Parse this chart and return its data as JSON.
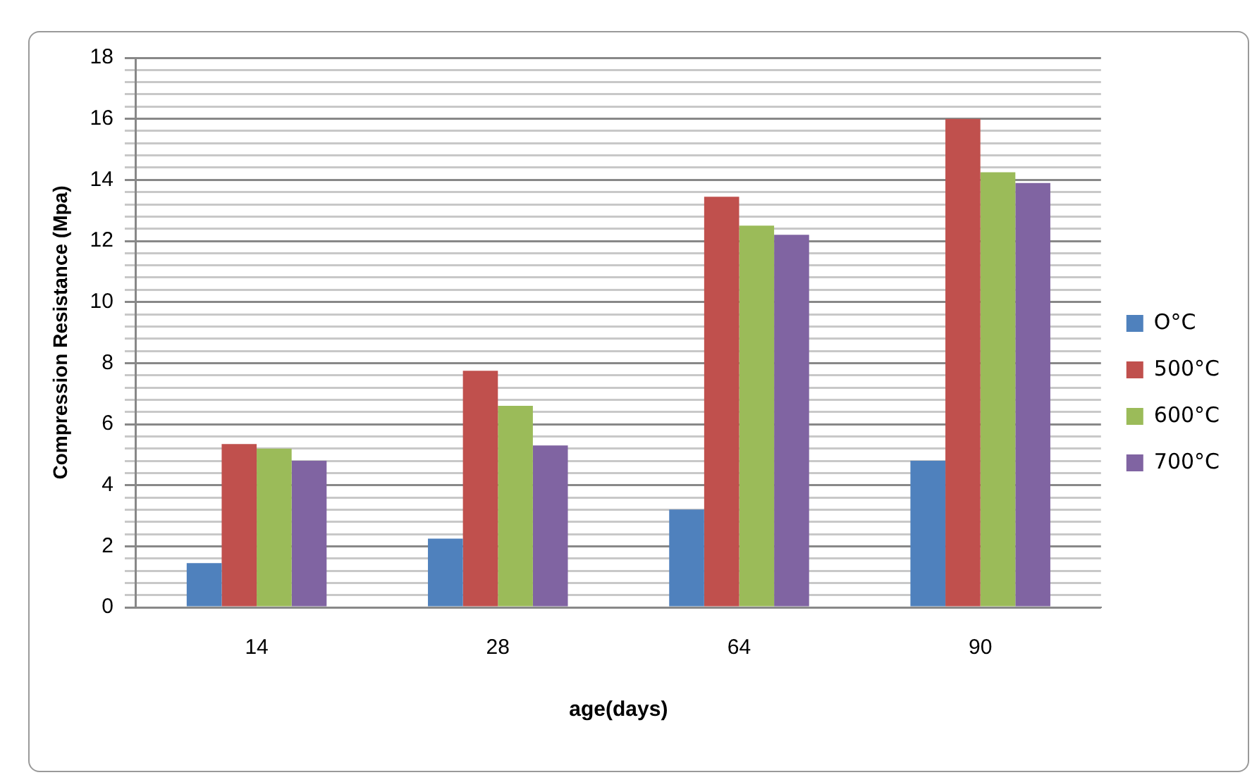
{
  "chart_data": {
    "type": "bar",
    "xlabel": "age(days)",
    "ylabel": "Compression Resistance (Mpa)",
    "categories": [
      "14",
      "28",
      "64",
      "90"
    ],
    "series": [
      {
        "name": "O°C",
        "color": "#4f81bd",
        "values": [
          1.45,
          2.25,
          3.2,
          4.8
        ]
      },
      {
        "name": "500°C",
        "color": "#c0504d",
        "values": [
          5.35,
          7.75,
          13.45,
          16
        ]
      },
      {
        "name": "600°C",
        "color": "#9bbb59",
        "values": [
          5.2,
          6.6,
          12.5,
          14.25
        ]
      },
      {
        "name": "700°C",
        "color": "#8064a2",
        "values": [
          4.8,
          5.3,
          12.2,
          13.9
        ]
      }
    ],
    "ylim": [
      0,
      18
    ],
    "yticks": [
      0,
      {
        "value": 0.4,
        "label": null
      },
      {
        "value": 0.8,
        "label": null
      },
      {
        "value": 1.2,
        "label": null
      },
      {
        "value": 1.6,
        "label": null
      },
      2,
      {
        "value": 2.4,
        "label": null
      },
      {
        "value": 2.8,
        "label": null
      },
      {
        "value": 3.2,
        "label": null
      },
      {
        "value": 3.6,
        "label": null
      },
      4,
      {
        "value": 4.4,
        "label": null
      },
      {
        "value": 4.8,
        "label": null
      },
      {
        "value": 5.2,
        "label": null
      },
      {
        "value": 5.6,
        "label": null
      },
      6,
      {
        "value": 6.4,
        "label": null
      },
      {
        "value": 6.8,
        "label": null
      },
      {
        "value": 7.2,
        "label": null
      },
      {
        "value": 7.6,
        "label": null
      },
      8,
      {
        "value": 8.4,
        "label": null
      },
      {
        "value": 8.8,
        "label": null
      },
      {
        "value": 9.2,
        "label": null
      },
      {
        "value": 9.6,
        "label": null
      },
      10,
      {
        "value": 10.4,
        "label": null
      },
      {
        "value": 10.8,
        "label": null
      },
      {
        "value": 11.2,
        "label": null
      },
      {
        "value": 11.6,
        "label": null
      },
      12,
      {
        "value": 12.4,
        "label": null
      },
      {
        "value": 12.8,
        "label": null
      },
      {
        "value": 13.2,
        "label": null
      },
      {
        "value": 13.6,
        "label": null
      },
      14,
      {
        "value": 14.4,
        "label": null
      },
      {
        "value": 14.8,
        "label": null
      },
      {
        "value": 15.2,
        "label": null
      },
      {
        "value": 15.6,
        "label": null
      },
      16,
      {
        "value": 16.4,
        "label": null
      },
      {
        "value": 16.8,
        "label": null
      },
      {
        "value": 17.2,
        "label": null
      },
      {
        "value": 17.6,
        "label": null
      },
      18
    ],
    "grid": "y",
    "legend": "right"
  }
}
